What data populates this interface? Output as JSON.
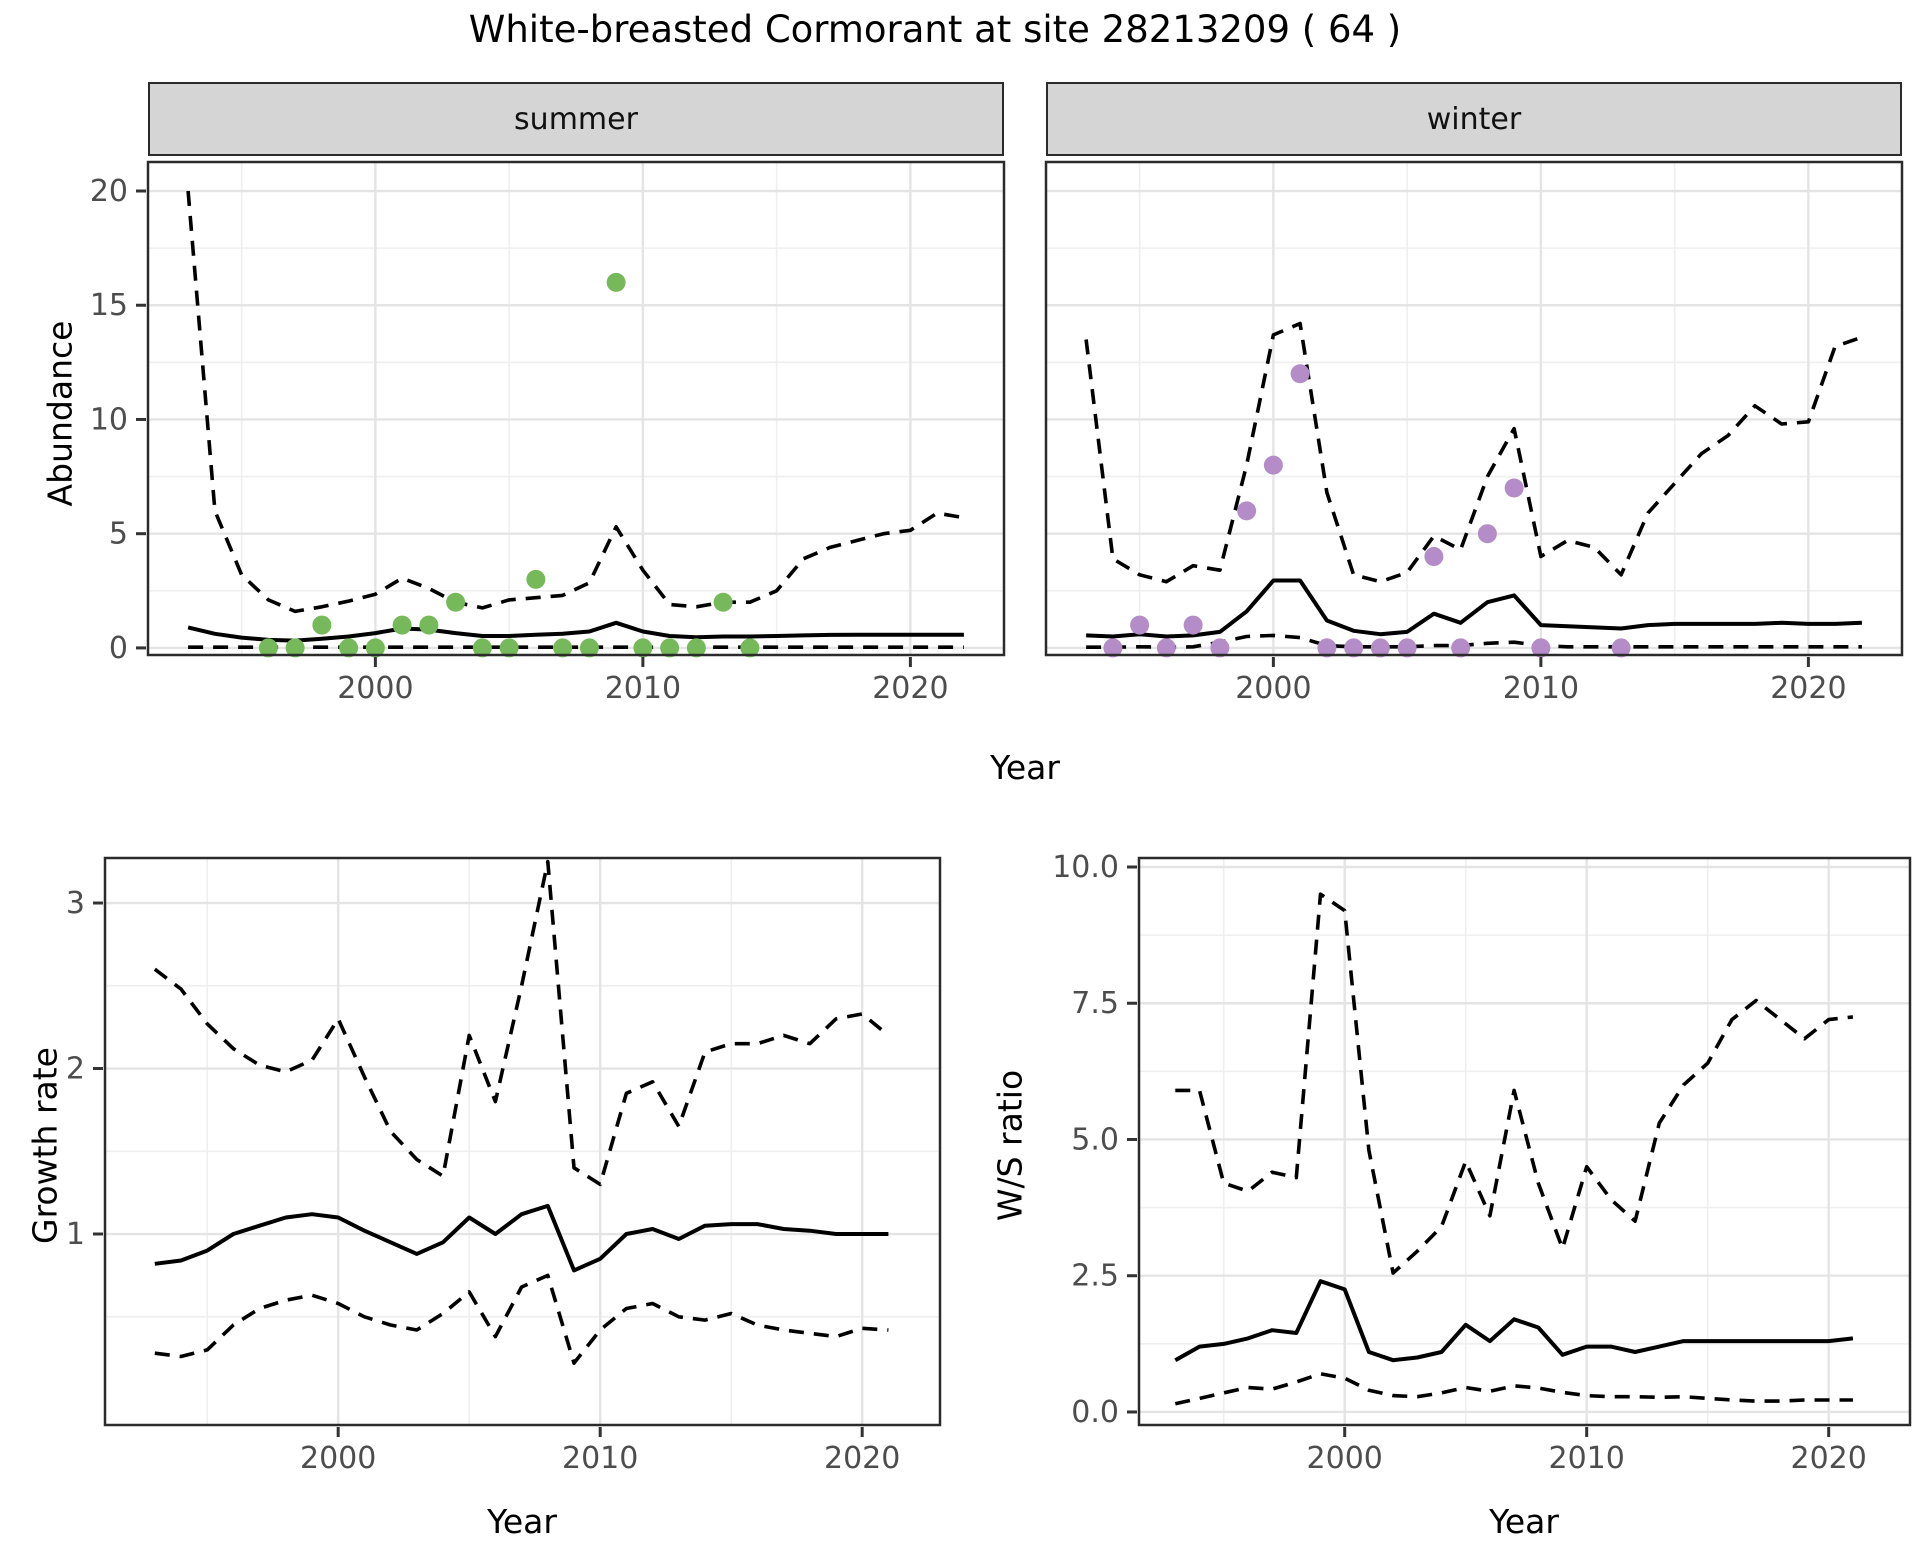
{
  "title": "White-breasted Cormorant at site 28213209 ( 64 )",
  "colors": {
    "summer_point": "#76b95a",
    "winter_point": "#b48cc8",
    "line": "#000000",
    "grid_major": "#e4e4e4",
    "grid_minor": "#efefef",
    "strip_bg": "#d5d5d5",
    "panel_border": "#2b2b2b",
    "tick_text": "#4d4d4d"
  },
  "chart_data": [
    {
      "type": "line",
      "facet": "summer",
      "xlabel": "Year",
      "ylabel": "Abundance",
      "xlim": [
        1991.5,
        2023.5
      ],
      "ylim": [
        -0.31,
        21.27
      ],
      "x_ticks": [
        2000,
        2010,
        2020
      ],
      "x_tick_labels": [
        "2000",
        "2010",
        "2020"
      ],
      "x_minor": [
        1995,
        2005,
        2015
      ],
      "y_ticks": [
        20,
        15,
        10,
        5,
        0
      ],
      "y_tick_labels": [
        "20",
        "15",
        "10",
        "5",
        "0"
      ],
      "y_minor": [
        2.5,
        7.5,
        12.5,
        17.5
      ],
      "grid": true,
      "legend": "none",
      "series": [
        {
          "name": "ci-upper",
          "style": "dashed",
          "x": [
            1993,
            1994,
            1995,
            1996,
            1997,
            1998,
            1999,
            2000,
            2001,
            2002,
            2003,
            2004,
            2005,
            2006,
            2007,
            2008,
            2009,
            2010,
            2011,
            2012,
            2013,
            2014,
            2015,
            2016,
            2017,
            2018,
            2019,
            2020,
            2021,
            2022
          ],
          "y": [
            20,
            6,
            3.2,
            2.1,
            1.6,
            1.8,
            2.05,
            2.35,
            3.05,
            2.6,
            2.0,
            1.75,
            2.1,
            2.2,
            2.3,
            2.85,
            5.3,
            3.4,
            1.9,
            1.8,
            2.0,
            2.0,
            2.5,
            3.9,
            4.4,
            4.7,
            5.0,
            5.15,
            5.9,
            5.7
          ]
        },
        {
          "name": "median",
          "style": "solid",
          "x": [
            1993,
            1994,
            1995,
            1996,
            1997,
            1998,
            1999,
            2000,
            2001,
            2002,
            2003,
            2004,
            2005,
            2006,
            2007,
            2008,
            2009,
            2010,
            2011,
            2012,
            2013,
            2014,
            2015,
            2016,
            2017,
            2018,
            2019,
            2020,
            2021,
            2022
          ],
          "y": [
            0.9,
            0.62,
            0.45,
            0.35,
            0.32,
            0.4,
            0.5,
            0.65,
            0.85,
            0.8,
            0.65,
            0.52,
            0.52,
            0.58,
            0.62,
            0.72,
            1.1,
            0.72,
            0.52,
            0.47,
            0.5,
            0.5,
            0.52,
            0.55,
            0.57,
            0.58,
            0.58,
            0.58,
            0.58,
            0.58
          ]
        },
        {
          "name": "ci-lower",
          "style": "dashed",
          "x": [
            1993,
            1994,
            1995,
            1996,
            1997,
            1998,
            1999,
            2000,
            2001,
            2002,
            2003,
            2004,
            2005,
            2006,
            2007,
            2008,
            2009,
            2010,
            2011,
            2012,
            2013,
            2014,
            2015,
            2016,
            2017,
            2018,
            2019,
            2020,
            2021,
            2022
          ],
          "y": [
            0.03,
            0.03,
            0.03,
            0.03,
            0.03,
            0.03,
            0.03,
            0.03,
            0.03,
            0.03,
            0.03,
            0.03,
            0.03,
            0.03,
            0.03,
            0.03,
            0.03,
            0.03,
            0.03,
            0.03,
            0.03,
            0.03,
            0.03,
            0.03,
            0.03,
            0.03,
            0.03,
            0.03,
            0.03,
            0.03
          ]
        }
      ],
      "points": {
        "name": "observed-abundance-summer",
        "color_key": "summer_point",
        "x": [
          1996,
          1997,
          1998,
          1999,
          2000,
          2001,
          2002,
          2003,
          2004,
          2005,
          2006,
          2007,
          2008,
          2009,
          2010,
          2011,
          2012,
          2013,
          2014
        ],
        "y": [
          0,
          0,
          1,
          0,
          0,
          1,
          1,
          2,
          0,
          0,
          3,
          0,
          0,
          16,
          0,
          0,
          0,
          2,
          0
        ]
      }
    },
    {
      "type": "line",
      "facet": "winter",
      "xlabel": "Year",
      "ylabel": "Abundance",
      "xlim": [
        1991.5,
        2023.5
      ],
      "ylim": [
        -0.31,
        21.27
      ],
      "x_ticks": [
        2000,
        2010,
        2020
      ],
      "x_tick_labels": [
        "2000",
        "2010",
        "2020"
      ],
      "x_minor": [
        1995,
        2005,
        2015
      ],
      "y_ticks": [
        20,
        15,
        10,
        5,
        0
      ],
      "y_tick_labels": [],
      "y_minor": [
        2.5,
        7.5,
        12.5,
        17.5
      ],
      "grid": true,
      "legend": "none",
      "series": [
        {
          "name": "ci-upper",
          "style": "dashed",
          "x": [
            1993,
            1994,
            1995,
            1996,
            1997,
            1998,
            1999,
            2000,
            2001,
            2002,
            2003,
            2004,
            2005,
            2006,
            2007,
            2008,
            2009,
            2010,
            2011,
            2012,
            2013,
            2014,
            2015,
            2016,
            2017,
            2018,
            2019,
            2020,
            2021,
            2022
          ],
          "y": [
            13.5,
            3.9,
            3.2,
            2.9,
            3.6,
            3.4,
            8.0,
            13.7,
            14.2,
            6.8,
            3.2,
            2.9,
            3.3,
            4.9,
            4.3,
            7.5,
            9.6,
            4.0,
            4.7,
            4.4,
            3.2,
            5.9,
            7.2,
            8.5,
            9.3,
            10.6,
            9.8,
            9.9,
            13.2,
            13.6
          ]
        },
        {
          "name": "median",
          "style": "solid",
          "x": [
            1993,
            1994,
            1995,
            1996,
            1997,
            1998,
            1999,
            2000,
            2001,
            2002,
            2003,
            2004,
            2005,
            2006,
            2007,
            2008,
            2009,
            2010,
            2011,
            2012,
            2013,
            2014,
            2015,
            2016,
            2017,
            2018,
            2019,
            2020,
            2021,
            2022
          ],
          "y": [
            0.55,
            0.5,
            0.6,
            0.5,
            0.55,
            0.7,
            1.6,
            2.95,
            2.95,
            1.2,
            0.75,
            0.6,
            0.7,
            1.5,
            1.1,
            2.0,
            2.3,
            1.0,
            0.95,
            0.9,
            0.85,
            1.0,
            1.05,
            1.05,
            1.05,
            1.05,
            1.1,
            1.05,
            1.05,
            1.1
          ]
        },
        {
          "name": "ci-lower",
          "style": "dashed",
          "x": [
            1993,
            1994,
            1995,
            1996,
            1997,
            1998,
            1999,
            2000,
            2001,
            2002,
            2003,
            2004,
            2005,
            2006,
            2007,
            2008,
            2009,
            2010,
            2011,
            2012,
            2013,
            2014,
            2015,
            2016,
            2017,
            2018,
            2019,
            2020,
            2021,
            2022
          ],
          "y": [
            0.03,
            0.03,
            0.05,
            0.03,
            0.05,
            0.25,
            0.5,
            0.55,
            0.45,
            0.1,
            0.05,
            0.05,
            0.05,
            0.1,
            0.1,
            0.2,
            0.25,
            0.1,
            0.05,
            0.05,
            0.05,
            0.05,
            0.05,
            0.05,
            0.05,
            0.05,
            0.05,
            0.05,
            0.05,
            0.05
          ]
        }
      ],
      "points": {
        "name": "observed-abundance-winter",
        "color_key": "winter_point",
        "x": [
          1994,
          1995,
          1996,
          1997,
          1998,
          1999,
          2000,
          2001,
          2002,
          2003,
          2004,
          2005,
          2006,
          2007,
          2008,
          2009,
          2010,
          2013
        ],
        "y": [
          0,
          1,
          0,
          1,
          0,
          6,
          8,
          12,
          0,
          0,
          0,
          0,
          4,
          0,
          5,
          7,
          0,
          0
        ]
      }
    },
    {
      "type": "line",
      "facet": "",
      "xlabel": "Year",
      "ylabel": "Growth rate",
      "xlim": [
        1991.1,
        2022.97
      ],
      "ylim": [
        -0.154,
        3.272
      ],
      "x_ticks": [
        2000,
        2010,
        2020
      ],
      "x_tick_labels": [
        "2000",
        "2010",
        "2020"
      ],
      "x_minor": [
        1995,
        2005,
        2015
      ],
      "y_ticks": [
        3,
        2,
        1
      ],
      "y_tick_labels": [
        "3",
        "2",
        "1"
      ],
      "y_minor": [
        0.5,
        1.5,
        2.5
      ],
      "grid": true,
      "legend": "none",
      "series": [
        {
          "name": "ci-upper",
          "style": "dashed",
          "x": [
            1993,
            1994,
            1995,
            1996,
            1997,
            1998,
            1999,
            2000,
            2001,
            2002,
            2003,
            2004,
            2005,
            2006,
            2007,
            2008,
            2009,
            2010,
            2011,
            2012,
            2013,
            2014,
            2015,
            2016,
            2017,
            2018,
            2019,
            2020,
            2021
          ],
          "y": [
            2.6,
            2.48,
            2.27,
            2.12,
            2.02,
            1.98,
            2.05,
            2.3,
            1.95,
            1.62,
            1.45,
            1.35,
            2.2,
            1.8,
            2.5,
            3.25,
            1.4,
            1.3,
            1.85,
            1.92,
            1.65,
            2.1,
            2.15,
            2.15,
            2.2,
            2.15,
            2.3,
            2.33,
            2.2
          ]
        },
        {
          "name": "median",
          "style": "solid",
          "x": [
            1993,
            1994,
            1995,
            1996,
            1997,
            1998,
            1999,
            2000,
            2001,
            2002,
            2003,
            2004,
            2005,
            2006,
            2007,
            2008,
            2009,
            2010,
            2011,
            2012,
            2013,
            2014,
            2015,
            2016,
            2017,
            2018,
            2019,
            2020,
            2021
          ],
          "y": [
            0.82,
            0.84,
            0.9,
            1.0,
            1.05,
            1.1,
            1.12,
            1.1,
            1.02,
            0.95,
            0.88,
            0.95,
            1.1,
            1.0,
            1.12,
            1.17,
            0.78,
            0.85,
            1.0,
            1.03,
            0.97,
            1.05,
            1.06,
            1.06,
            1.03,
            1.02,
            1.0,
            1.0,
            1.0
          ]
        },
        {
          "name": "ci-lower",
          "style": "dashed",
          "x": [
            1993,
            1994,
            1995,
            1996,
            1997,
            1998,
            1999,
            2000,
            2001,
            2002,
            2003,
            2004,
            2005,
            2006,
            2007,
            2008,
            2009,
            2010,
            2011,
            2012,
            2013,
            2014,
            2015,
            2016,
            2017,
            2018,
            2019,
            2020,
            2021
          ],
          "y": [
            0.28,
            0.26,
            0.3,
            0.45,
            0.55,
            0.6,
            0.63,
            0.58,
            0.5,
            0.45,
            0.42,
            0.52,
            0.65,
            0.38,
            0.68,
            0.75,
            0.22,
            0.42,
            0.55,
            0.58,
            0.5,
            0.48,
            0.52,
            0.45,
            0.42,
            0.4,
            0.38,
            0.43,
            0.42
          ]
        }
      ],
      "points": null
    },
    {
      "type": "line",
      "facet": "",
      "xlabel": "Year",
      "ylabel": "W/S ratio",
      "xlim": [
        1991.5,
        2023.36
      ],
      "ylim": [
        -0.239,
        10.165
      ],
      "x_ticks": [
        2000,
        2010,
        2020
      ],
      "x_tick_labels": [
        "2000",
        "2010",
        "2020"
      ],
      "x_minor": [
        1995,
        2005,
        2015
      ],
      "y_ticks": [
        10,
        7.5,
        5,
        2.5,
        0
      ],
      "y_tick_labels": [
        "10.0",
        "7.5",
        "5.0",
        "2.5",
        "0.0"
      ],
      "y_minor": [
        1.25,
        3.75,
        6.25,
        8.75
      ],
      "grid": true,
      "legend": "none",
      "series": [
        {
          "name": "ci-upper",
          "style": "dashed",
          "x": [
            1993,
            1994,
            1995,
            1996,
            1997,
            1998,
            1999,
            2000,
            2001,
            2002,
            2003,
            2004,
            2005,
            2006,
            2007,
            2008,
            2009,
            2010,
            2011,
            2012,
            2013,
            2014,
            2015,
            2016,
            2017,
            2018,
            2019,
            2020,
            2021
          ],
          "y": [
            5.9,
            5.9,
            4.2,
            4.05,
            4.4,
            4.3,
            9.5,
            9.2,
            4.8,
            2.55,
            2.95,
            3.4,
            4.6,
            3.6,
            5.9,
            4.2,
            3.0,
            4.5,
            3.9,
            3.5,
            5.3,
            6.0,
            6.4,
            7.2,
            7.55,
            7.2,
            6.85,
            7.2,
            7.25
          ]
        },
        {
          "name": "median",
          "style": "solid",
          "x": [
            1993,
            1994,
            1995,
            1996,
            1997,
            1998,
            1999,
            2000,
            2001,
            2002,
            2003,
            2004,
            2005,
            2006,
            2007,
            2008,
            2009,
            2010,
            2011,
            2012,
            2013,
            2014,
            2015,
            2016,
            2017,
            2018,
            2019,
            2020,
            2021
          ],
          "y": [
            0.95,
            1.2,
            1.25,
            1.35,
            1.5,
            1.45,
            2.4,
            2.25,
            1.1,
            0.95,
            1.0,
            1.1,
            1.6,
            1.3,
            1.7,
            1.55,
            1.05,
            1.2,
            1.2,
            1.1,
            1.2,
            1.3,
            1.3,
            1.3,
            1.3,
            1.3,
            1.3,
            1.3,
            1.35
          ]
        },
        {
          "name": "ci-lower",
          "style": "dashed",
          "x": [
            1993,
            1994,
            1995,
            1996,
            1997,
            1998,
            1999,
            2000,
            2001,
            2002,
            2003,
            2004,
            2005,
            2006,
            2007,
            2008,
            2009,
            2010,
            2011,
            2012,
            2013,
            2014,
            2015,
            2016,
            2017,
            2018,
            2019,
            2020,
            2021
          ],
          "y": [
            0.15,
            0.25,
            0.35,
            0.45,
            0.42,
            0.55,
            0.7,
            0.62,
            0.4,
            0.3,
            0.28,
            0.35,
            0.45,
            0.38,
            0.48,
            0.44,
            0.36,
            0.3,
            0.28,
            0.28,
            0.27,
            0.28,
            0.25,
            0.22,
            0.2,
            0.2,
            0.22,
            0.22,
            0.22
          ]
        }
      ],
      "points": null
    }
  ]
}
